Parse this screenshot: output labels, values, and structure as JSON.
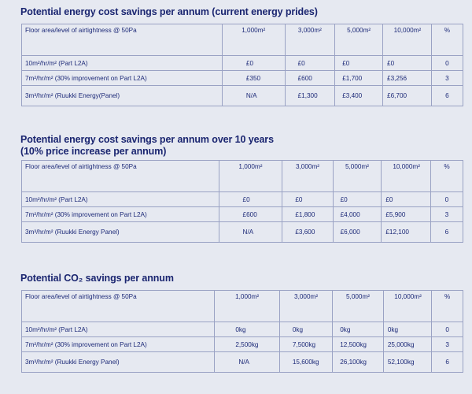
{
  "sections": [
    {
      "title": "Potential energy cost savings per annum (current energy prides)",
      "subtitle": "",
      "headers": [
        "Floor area/level of airtightness @ 50Pa",
        "1,000m²",
        "3,000m²",
        "5,000m²",
        "10,000m²",
        "%"
      ],
      "rows": [
        {
          "label": "10m²/hr/m² (Part L2A)",
          "cells": [
            "£0",
            "£0",
            "£0",
            "£0",
            "0"
          ]
        },
        {
          "label": "7m²/hr/m² (30% improvement on Part L2A)",
          "cells": [
            "£350",
            "£600",
            "£1,700",
            "£3,256",
            "3"
          ]
        },
        {
          "label": "3m³/hr/m² (Ruukki Energy(Panel)",
          "cells": [
            "N/A",
            "£1,300",
            "£3,400",
            "£6,700",
            "6"
          ]
        }
      ]
    },
    {
      "title": "Potential energy cost savings per annum over 10 years",
      "subtitle": "(10% price increase per annum)",
      "headers": [
        "Floor area/level of airtightness @ 50Pa",
        "1,000m²",
        "3,000m²",
        "5,000m²",
        "10,000m²",
        "%"
      ],
      "rows": [
        {
          "label": "10m²/hr/m² (Part L2A)",
          "cells": [
            "£0",
            "£0",
            "£0",
            "£0",
            "0"
          ]
        },
        {
          "label": "7m²/hr/m² (30% improvement on Part L2A)",
          "cells": [
            "£600",
            "£1,800",
            "£4,000",
            "£5,900",
            "3"
          ]
        },
        {
          "label": "3m³/hr/m² (Ruukki Energy Panel)",
          "cells": [
            "N/A",
            "£3,600",
            "£6,000",
            "£12,100",
            "6"
          ]
        }
      ]
    },
    {
      "title": "Potential CO₂ savings per annum",
      "subtitle": "",
      "headers": [
        "Floor area/level of airtightness @ 50Pa",
        "1,000m²",
        "3,000m²",
        "5,000m²",
        "10,000m²",
        "%"
      ],
      "rows": [
        {
          "label": "10m²/hr/m² (Part L2A)",
          "cells": [
            "0kg",
            "0kg",
            "0kg",
            "0kg",
            "0"
          ]
        },
        {
          "label": "7m²/hr/m² (30% improvement on Part L2A)",
          "cells": [
            "2,500kg",
            "7,500kg",
            "12,500kg",
            "25,000kg",
            "3"
          ]
        },
        {
          "label": "3m³/hr/m² (Ruukki Energy Panel)",
          "cells": [
            "N/A",
            "15,600kg",
            "26,100kg",
            "52,100kg",
            "6"
          ]
        }
      ]
    }
  ]
}
